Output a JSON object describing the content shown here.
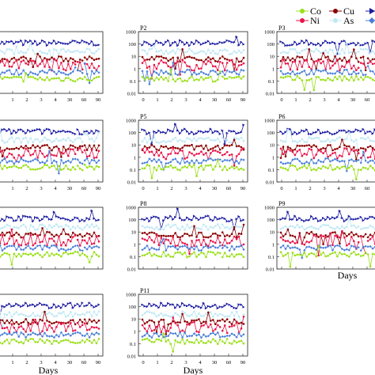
{
  "figure": {
    "xlabel": "Days",
    "legend": [
      {
        "name": "Co",
        "color": "#9be01a",
        "marker": "circle"
      },
      {
        "name": "Cu",
        "color": "#8b0000",
        "marker": "circle"
      },
      {
        "name": "Ni",
        "color": "#e8154a",
        "marker": "circle"
      },
      {
        "name": "As",
        "color": "#bfe8f5",
        "marker": "circle"
      },
      {
        "name": "",
        "color": "#1a1aa0",
        "marker": "triangle"
      },
      {
        "name": "",
        "color": "#4a7fd8",
        "marker": "diamond"
      }
    ]
  },
  "chart_data": {
    "type": "line",
    "yscale": "log",
    "ylim": [
      0.01,
      1000
    ],
    "y_ticks": [
      "1000",
      "100",
      "10",
      "1",
      "0.1",
      "0.01"
    ],
    "x_ticks": [
      "0",
      "1",
      "2",
      "3",
      "4",
      "30",
      "60",
      "90"
    ],
    "panels": [
      {
        "label": "",
        "col": 0,
        "row": 0,
        "show_x_ticks": true,
        "show_y_ticks": false,
        "show_xlabel": false
      },
      {
        "label": "P2",
        "col": 1,
        "row": 0,
        "show_x_ticks": true,
        "show_y_ticks": true,
        "show_xlabel": false
      },
      {
        "label": "P3",
        "col": 2,
        "row": 0,
        "show_x_ticks": true,
        "show_y_ticks": true,
        "show_xlabel": false
      },
      {
        "label": "",
        "col": 0,
        "row": 1,
        "show_x_ticks": true,
        "show_y_ticks": false,
        "show_xlabel": false
      },
      {
        "label": "P5",
        "col": 1,
        "row": 1,
        "show_x_ticks": true,
        "show_y_ticks": true,
        "show_xlabel": false
      },
      {
        "label": "P6",
        "col": 2,
        "row": 1,
        "show_x_ticks": true,
        "show_y_ticks": true,
        "show_xlabel": false
      },
      {
        "label": "",
        "col": 0,
        "row": 2,
        "show_x_ticks": false,
        "show_y_ticks": false,
        "show_xlabel": false
      },
      {
        "label": "P8",
        "col": 1,
        "row": 2,
        "show_x_ticks": false,
        "show_y_ticks": true,
        "show_xlabel": false
      },
      {
        "label": "P9",
        "col": 2,
        "row": 2,
        "show_x_ticks": false,
        "show_y_ticks": true,
        "show_xlabel": true
      },
      {
        "label": "",
        "col": 0,
        "row": 3,
        "show_x_ticks": true,
        "show_y_ticks": false,
        "show_xlabel": true
      },
      {
        "label": "P11",
        "col": 1,
        "row": 3,
        "show_x_ticks": true,
        "show_y_ticks": true,
        "show_xlabel": true
      }
    ],
    "series": [
      {
        "name": "",
        "color": "#1a1aa0",
        "marker": "triangle",
        "level": 120
      },
      {
        "name": "As",
        "color": "#bfe8f5",
        "marker": "circle",
        "level": 25
      },
      {
        "name": "Cu",
        "color": "#8b0000",
        "marker": "circle",
        "level": 6
      },
      {
        "name": "Ni",
        "color": "#e8154a",
        "marker": "circle",
        "level": 2
      },
      {
        "name": "",
        "color": "#4a7fd8",
        "marker": "diamond",
        "level": 0.5
      },
      {
        "name": "Co",
        "color": "#9be01a",
        "marker": "circle",
        "level": 0.15
      }
    ]
  }
}
